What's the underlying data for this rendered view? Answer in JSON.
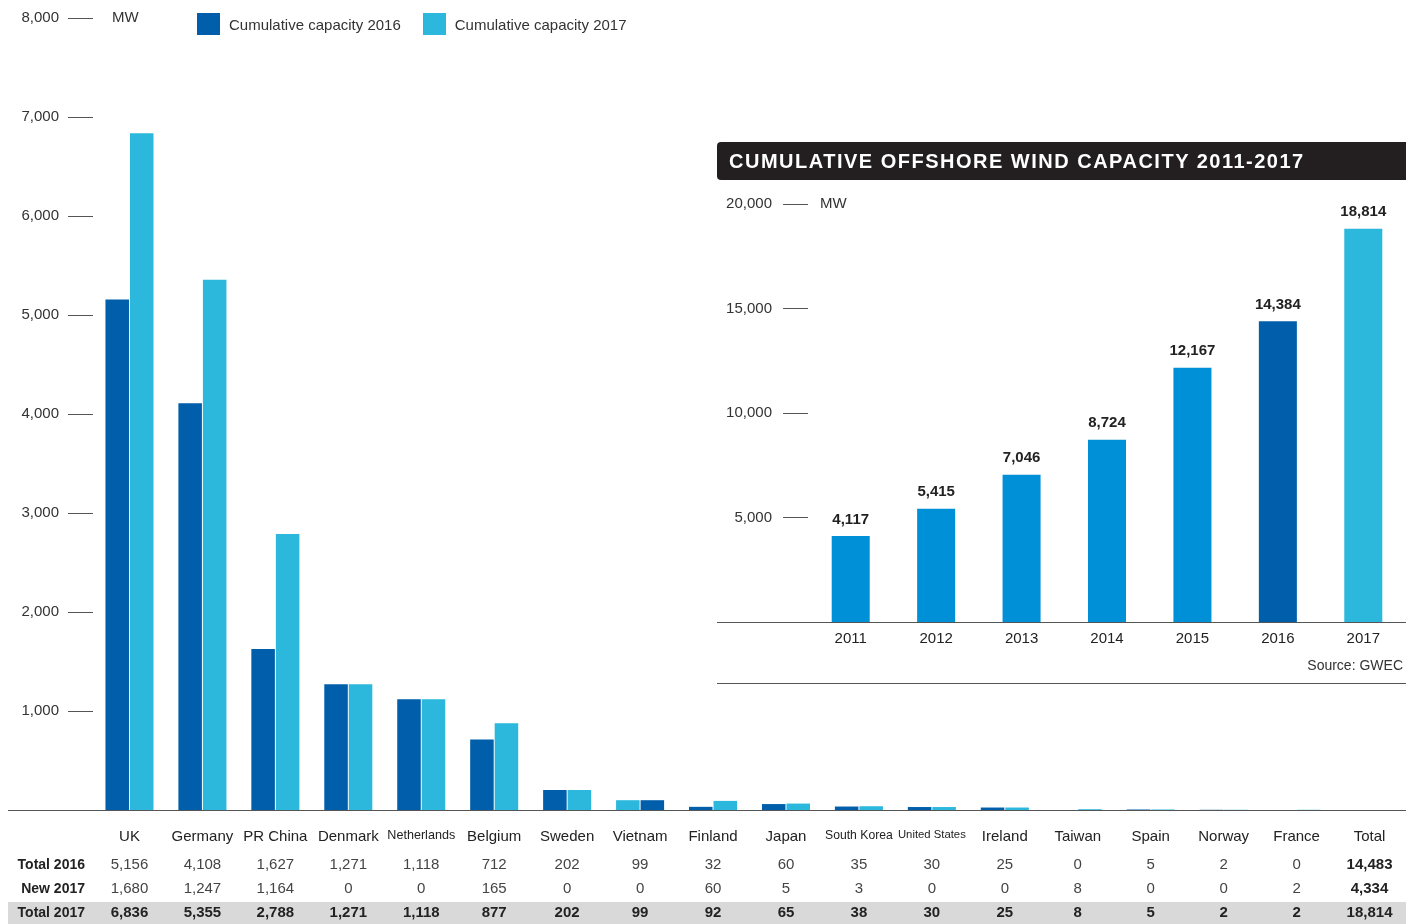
{
  "chart_data": [
    {
      "type": "bar",
      "ylabel": "MW",
      "legend": "top left",
      "categories": [
        "UK",
        "Germany",
        "PR China",
        "Denmark",
        "Netherlands",
        "Belgium",
        "Sweden",
        "Vietnam",
        "Finland",
        "Japan",
        "South Korea",
        "United States",
        "Ireland",
        "Taiwan",
        "Spain",
        "Norway",
        "France",
        "Total"
      ],
      "series": [
        {
          "name": "Cumulative capacity 2016",
          "color": "#005eab",
          "colors": [
            "#005eab",
            "#005eab",
            "#005eab",
            "#005eab",
            "#005eab",
            "#005eab",
            "#005eab",
            "#2bb8dc",
            "#005eab",
            "#005eab",
            "#005eab",
            "#005eab",
            "#005eab",
            "#005eab",
            "#005eab",
            "#005eab",
            "#005eab",
            null
          ],
          "values": [
            5156,
            4108,
            1627,
            1271,
            1118,
            712,
            202,
            99,
            32,
            60,
            35,
            30,
            25,
            0,
            5,
            2,
            0,
            null
          ],
          "value_labels": [
            "5,156",
            "4,108",
            "1,627",
            "1,271",
            "1,118",
            "712",
            "202",
            "99",
            "32",
            "60",
            "35",
            "30",
            "25",
            "0",
            "5",
            "2",
            "0",
            "14,483"
          ]
        },
        {
          "name": "Cumulative capacity 2017",
          "color": "#2bb8dc",
          "colors": [
            "#2bb8dc",
            "#2bb8dc",
            "#2bb8dc",
            "#2bb8dc",
            "#2bb8dc",
            "#2bb8dc",
            "#2bb8dc",
            "#005eab",
            "#2bb8dc",
            "#2bb8dc",
            "#2bb8dc",
            "#2bb8dc",
            "#2bb8dc",
            "#2bb8dc",
            "#2bb8dc",
            "#2bb8dc",
            "#2bb8dc",
            null
          ],
          "values": [
            6836,
            5355,
            2788,
            1271,
            1118,
            877,
            202,
            99,
            92,
            65,
            38,
            30,
            25,
            8,
            5,
            2,
            2,
            null
          ],
          "value_labels": [
            "6,836",
            "5,355",
            "2,788",
            "1,271",
            "1,118",
            "877",
            "202",
            "99",
            "92",
            "65",
            "38",
            "30",
            "25",
            "8",
            "5",
            "2",
            "2",
            "18,814"
          ]
        }
      ],
      "ylim": [
        0,
        8000
      ],
      "yticks": [
        {
          "value": 1000,
          "label": "1,000"
        },
        {
          "value": 2000,
          "label": "2,000"
        },
        {
          "value": 3000,
          "label": "3,000"
        },
        {
          "value": 4000,
          "label": "4,000"
        },
        {
          "value": 5000,
          "label": "5,000"
        },
        {
          "value": 6000,
          "label": "6,000"
        },
        {
          "value": 7000,
          "label": "7,000"
        },
        {
          "value": 8000,
          "label": "8,000"
        }
      ],
      "annotations": [
        "Total 2016",
        "New 2017",
        "1,680",
        "1,247",
        "1,164",
        "0",
        "0",
        "165",
        "0",
        "0",
        "60",
        "5",
        "3",
        "0",
        "0",
        "8",
        "0",
        "0",
        "2",
        "4,334",
        "Total 2017"
      ]
    },
    {
      "type": "bar",
      "title": "CUMULATIVE OFFSHORE WIND CAPACITY 2011-2017",
      "ylabel": "MW",
      "categories": [
        "2011",
        "2012",
        "2013",
        "2014",
        "2015",
        "2016",
        "2017"
      ],
      "values": [
        4117,
        5415,
        7046,
        8724,
        12167,
        14384,
        18814
      ],
      "colors": [
        "#0090d8",
        "#0090d8",
        "#0090d8",
        "#0090d8",
        "#0090d8",
        "#005eab",
        "#2bb8dc"
      ],
      "value_labels": [
        "4,117",
        "5,415",
        "7,046",
        "8,724",
        "12,167",
        "14,384",
        "18,814"
      ],
      "ylim": [
        0,
        20000
      ],
      "yticks": [
        {
          "value": 5000,
          "label": "5,000"
        },
        {
          "value": 10000,
          "label": "10,000"
        },
        {
          "value": 15000,
          "label": "15,000"
        },
        {
          "value": 20000,
          "label": "20,000"
        }
      ],
      "annotations": [
        "Source: GWEC"
      ]
    }
  ]
}
